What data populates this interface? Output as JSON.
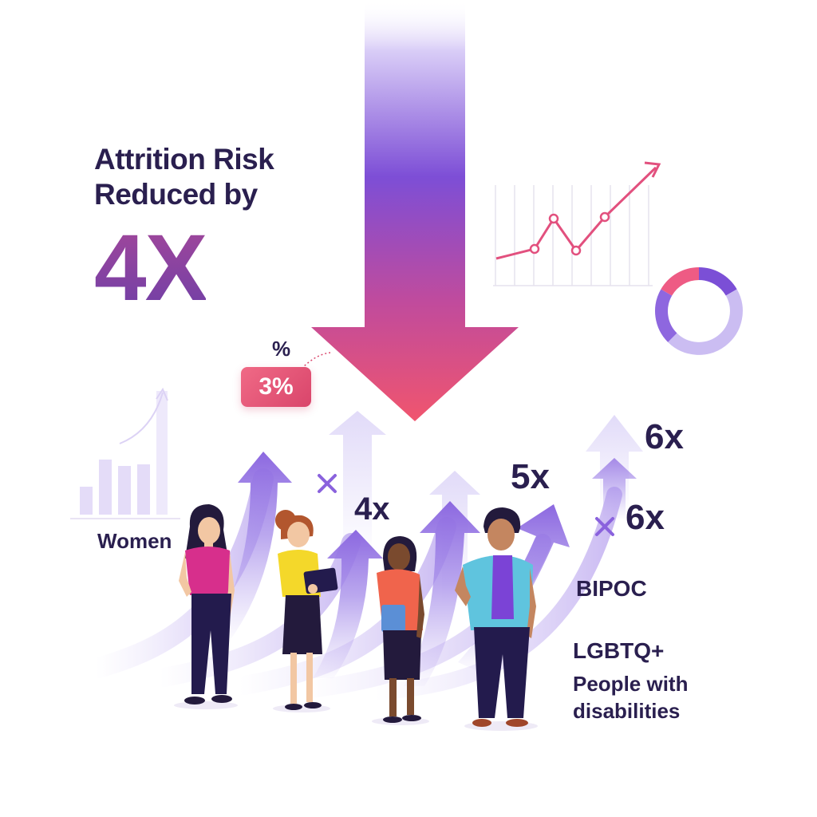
{
  "headline": {
    "line1": "Attrition Risk",
    "line2": "Reduced by"
  },
  "big_value": "4X",
  "percent_symbol": "%",
  "badge_value": "3%",
  "multipliers": {
    "m4x": "4x",
    "m5x": "5x",
    "m6x_top": "6x",
    "m6x_mid": "6x"
  },
  "groups": {
    "women": "Women",
    "bipoc": "BIPOC",
    "lgbtq": "LGBTQ+",
    "disabilities_line1": "People with",
    "disabilities_line2": "disabilities"
  },
  "colors": {
    "text": "#2a1f4f",
    "purple": "#7b4fd6",
    "light_purple": "#b9a6ef",
    "pink": "#e9507a",
    "magenta": "#c8338f"
  },
  "icons": [
    "down-arrow-graphic",
    "line-chart-icon",
    "donut-chart-icon",
    "bar-chart-icon",
    "growth-arrow-icon",
    "x-mark-icon"
  ]
}
